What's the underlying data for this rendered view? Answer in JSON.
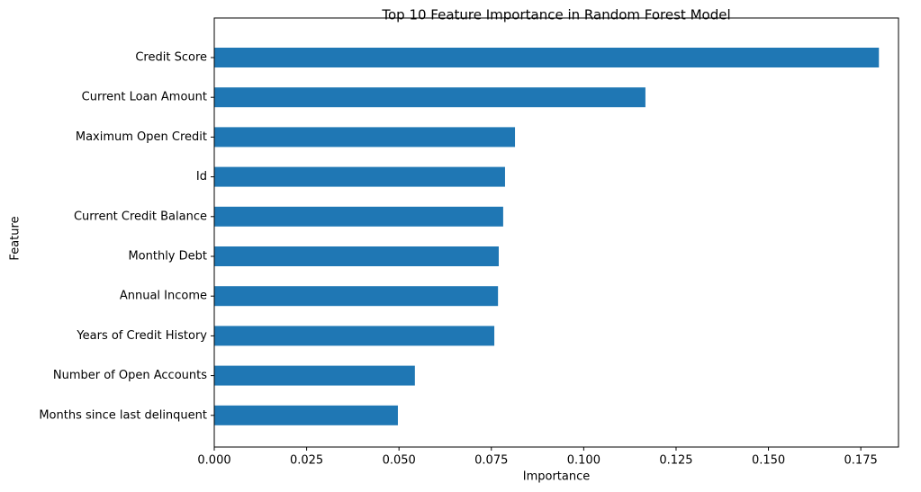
{
  "chart_data": {
    "type": "barh",
    "title": "Top 10 Feature Importance in Random Forest Model",
    "x_label": "Importance",
    "y_label": "Feature",
    "categories": [
      "Credit Score",
      "Current Loan Amount",
      "Maximum Open Credit",
      "Id",
      "Current Credit Balance",
      "Monthly Debt",
      "Annual Income",
      "Years of Credit History",
      "Number of Open Accounts",
      "Months since last delinquent"
    ],
    "values": [
      0.1799,
      0.1167,
      0.0814,
      0.0787,
      0.0782,
      0.077,
      0.0768,
      0.0758,
      0.0543,
      0.0497
    ],
    "color": "#1f77b4",
    "xlim": [
      0,
      0.1852
    ],
    "xticks": [
      {
        "value": 0,
        "label": "0.000"
      },
      {
        "value": 0.025,
        "label": "0.025"
      },
      {
        "value": 0.05,
        "label": "0.050"
      },
      {
        "value": 0.075,
        "label": "0.075"
      },
      {
        "value": 0.1,
        "label": "0.100"
      },
      {
        "value": 0.125,
        "label": "0.125"
      },
      {
        "value": 0.15,
        "label": "0.150"
      },
      {
        "value": 0.175,
        "label": "0.175"
      }
    ],
    "grid": false
  }
}
